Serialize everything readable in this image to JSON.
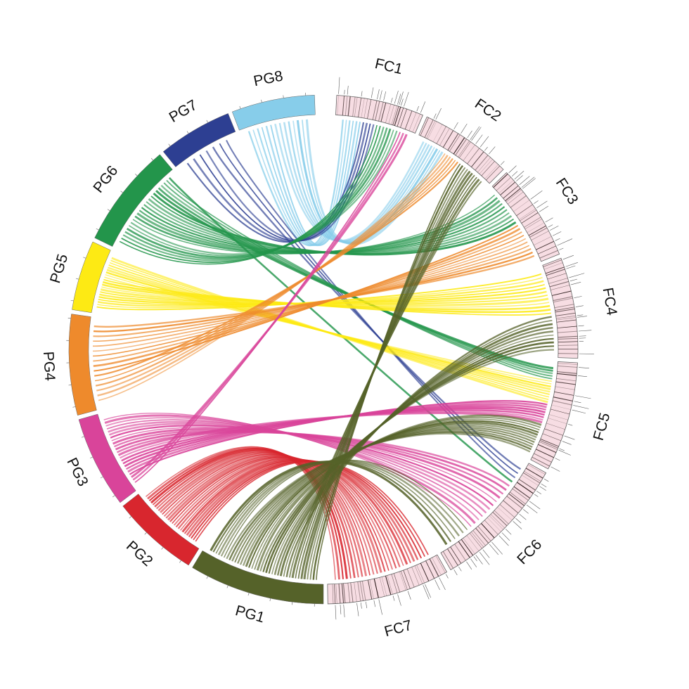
{
  "diagram": {
    "type": "circos-chord",
    "segments": [
      {
        "id": "PG1",
        "label": "PG1",
        "color": "#556229",
        "group": "PG"
      },
      {
        "id": "PG2",
        "label": "PG2",
        "color": "#d8262e",
        "group": "PG"
      },
      {
        "id": "PG3",
        "label": "PG3",
        "color": "#d9449a",
        "group": "PG"
      },
      {
        "id": "PG4",
        "label": "PG4",
        "color": "#ee8a2c",
        "group": "PG"
      },
      {
        "id": "PG5",
        "label": "PG5",
        "color": "#fdea14",
        "group": "PG"
      },
      {
        "id": "PG6",
        "label": "PG6",
        "color": "#23954b",
        "group": "PG"
      },
      {
        "id": "PG7",
        "label": "PG7",
        "color": "#2d3f92",
        "group": "PG"
      },
      {
        "id": "PG8",
        "label": "PG8",
        "color": "#87cdea",
        "group": "PG"
      },
      {
        "id": "FC1",
        "label": "FC1",
        "color": "#f7dde3",
        "group": "FC"
      },
      {
        "id": "FC2",
        "label": "FC2",
        "color": "#f7dde3",
        "group": "FC"
      },
      {
        "id": "FC3",
        "label": "FC3",
        "color": "#f7dde3",
        "group": "FC"
      },
      {
        "id": "FC4",
        "label": "FC4",
        "color": "#f7dde3",
        "group": "FC"
      },
      {
        "id": "FC5",
        "label": "FC5",
        "color": "#f7dde3",
        "group": "FC"
      },
      {
        "id": "FC6",
        "label": "FC6",
        "color": "#f7dde3",
        "group": "FC"
      },
      {
        "id": "FC7",
        "label": "FC7",
        "color": "#f7dde3",
        "group": "FC"
      }
    ],
    "links": [
      {
        "from": "PG8",
        "to": "FC1",
        "color": "#87cdea",
        "count": 6
      },
      {
        "from": "PG8",
        "to": "FC2",
        "color": "#87cdea",
        "count": 8
      },
      {
        "from": "PG7",
        "to": "FC1",
        "color": "#2d3f92",
        "count": 4
      },
      {
        "from": "PG7",
        "to": "FC6",
        "color": "#2d3f92",
        "count": 3
      },
      {
        "from": "PG6",
        "to": "FC1",
        "color": "#23954b",
        "count": 7
      },
      {
        "from": "PG6",
        "to": "FC3",
        "color": "#23954b",
        "count": 10
      },
      {
        "from": "PG6",
        "to": "FC5",
        "color": "#23954b",
        "count": 5
      },
      {
        "from": "PG6",
        "to": "FC6",
        "color": "#23954b",
        "count": 1
      },
      {
        "from": "PG5",
        "to": "FC4",
        "color": "#fdea14",
        "count": 12
      },
      {
        "from": "PG5",
        "to": "FC5",
        "color": "#fdea14",
        "count": 9
      },
      {
        "from": "PG4",
        "to": "FC2",
        "color": "#ee8a2c",
        "count": 6
      },
      {
        "from": "PG4",
        "to": "FC3",
        "color": "#ee8a2c",
        "count": 10
      },
      {
        "from": "PG3",
        "to": "FC1",
        "color": "#d9449a",
        "count": 3
      },
      {
        "from": "PG3",
        "to": "FC5",
        "color": "#d9449a",
        "count": 8
      },
      {
        "from": "PG3",
        "to": "FC6",
        "color": "#d9449a",
        "count": 12
      },
      {
        "from": "PG2",
        "to": "FC7",
        "color": "#d8262e",
        "count": 26
      },
      {
        "from": "PG1",
        "to": "FC2",
        "color": "#556229",
        "count": 10
      },
      {
        "from": "PG1",
        "to": "FC4",
        "color": "#556229",
        "count": 10
      },
      {
        "from": "PG1",
        "to": "FC5",
        "color": "#556229",
        "count": 12
      },
      {
        "from": "PG1",
        "to": "FC6",
        "color": "#556229",
        "count": 6
      }
    ]
  }
}
